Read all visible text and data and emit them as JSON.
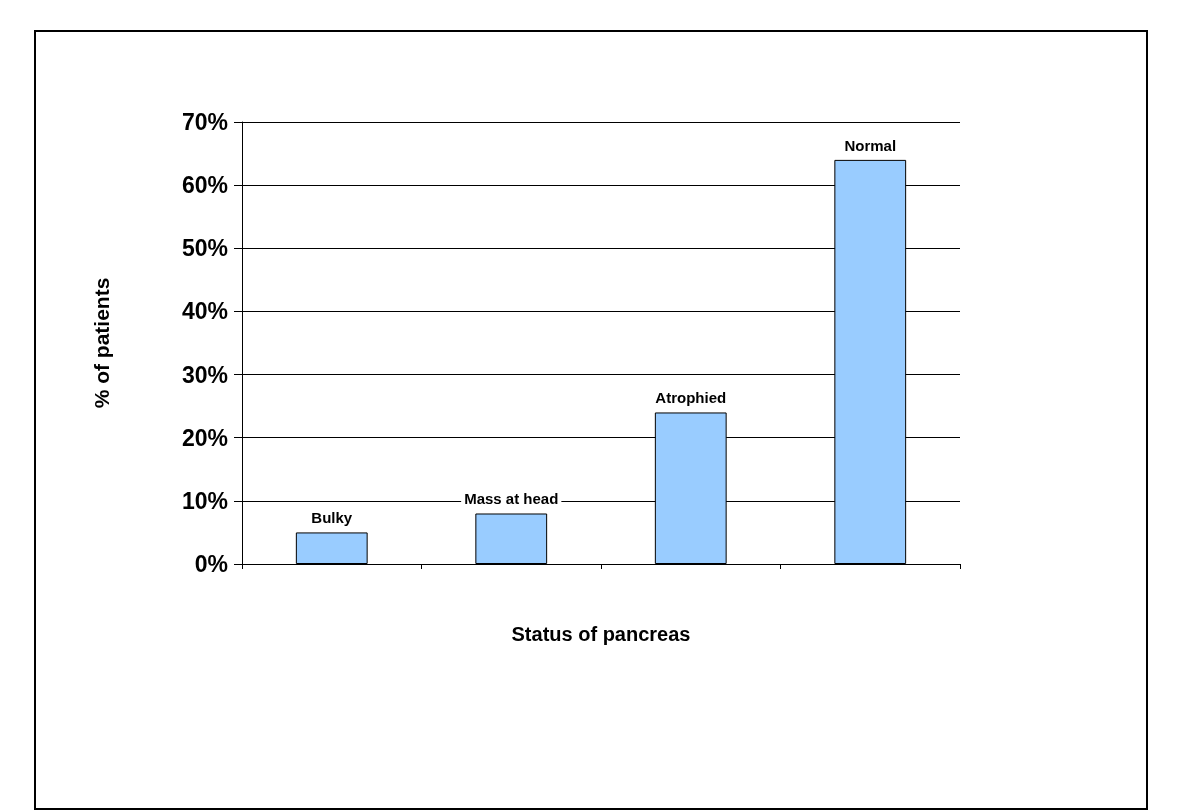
{
  "chart_data": {
    "type": "bar",
    "xlabel": "Status of pancreas",
    "ylabel": "% of patients",
    "categories": [
      "Bulky",
      "Mass at head",
      "Atrophied",
      "Normal"
    ],
    "values": [
      5,
      8,
      24,
      64
    ],
    "color": "#99ccff",
    "ylim": [
      0,
      70
    ],
    "yticks": [
      {
        "value": 0,
        "label": "0%"
      },
      {
        "value": 10,
        "label": "10%"
      },
      {
        "value": 20,
        "label": "20%"
      },
      {
        "value": 30,
        "label": "30%"
      },
      {
        "value": 40,
        "label": "40%"
      },
      {
        "value": 50,
        "label": "50%"
      },
      {
        "value": 60,
        "label": "60%"
      },
      {
        "value": 70,
        "label": "70%"
      }
    ],
    "grid": "y",
    "tick_labels": "y"
  }
}
